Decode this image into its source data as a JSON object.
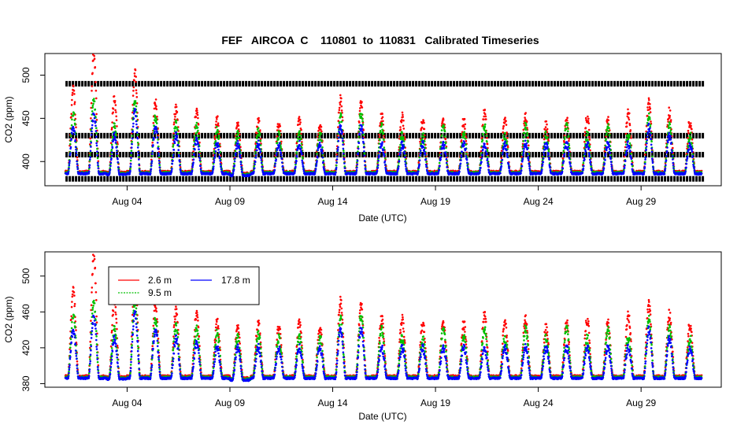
{
  "title": "FEF   AIRCOA  C    110801  to  110831   Calibrated Timeseries",
  "colors": {
    "s1": "#ff0000",
    "s2": "#00c000",
    "s3": "#0000ff",
    "calib": "#000000"
  },
  "chart_data": [
    {
      "type": "scatter",
      "panel": "top",
      "xlabel": "Date (UTC)",
      "ylabel": "CO2 (ppm)",
      "x_unit": "days since Aug 01 00:00 UTC",
      "xlim": [
        -1.0,
        31.9
      ],
      "ylim": [
        372,
        525
      ],
      "xticks": [
        {
          "x": 3,
          "label": "Aug 04"
        },
        {
          "x": 8,
          "label": "Aug 09"
        },
        {
          "x": 13,
          "label": "Aug 14"
        },
        {
          "x": 18,
          "label": "Aug 19"
        },
        {
          "x": 23,
          "label": "Aug 24"
        },
        {
          "x": 28,
          "label": "Aug 29"
        }
      ],
      "yticks": [
        400,
        450,
        500
      ],
      "calibration_levels": [
        380,
        408,
        430,
        490
      ],
      "calibration_range": [
        0.0,
        31.1
      ],
      "grid": false
    },
    {
      "type": "scatter",
      "panel": "bottom",
      "xlabel": "Date (UTC)",
      "ylabel": "CO2 (ppm)",
      "xlim": [
        -1.0,
        31.9
      ],
      "ylim": [
        376,
        527
      ],
      "xticks": [
        {
          "x": 3,
          "label": "Aug 04"
        },
        {
          "x": 8,
          "label": "Aug 09"
        },
        {
          "x": 13,
          "label": "Aug 14"
        },
        {
          "x": 18,
          "label": "Aug 19"
        },
        {
          "x": 23,
          "label": "Aug 24"
        },
        {
          "x": 28,
          "label": "Aug 29"
        }
      ],
      "yticks": [
        380,
        420,
        460,
        500
      ],
      "legend": {
        "placement": "top-left",
        "entries": [
          "2.6 m",
          "9.5 m",
          "17.8 m"
        ]
      },
      "series": [
        {
          "name": "2.6 m",
          "color": "#ff0000"
        },
        {
          "name": "9.5 m",
          "color": "#00c000"
        },
        {
          "name": "17.8 m",
          "color": "#0000ff"
        }
      ],
      "daily_cycle": {
        "day_offset": [
          0,
          1,
          2,
          3,
          4,
          5,
          6,
          7,
          8,
          9,
          10,
          11,
          12,
          13,
          14,
          15,
          16,
          17,
          18,
          19,
          20,
          21,
          22,
          23,
          24,
          25,
          26,
          27,
          28,
          29,
          30,
          31
        ],
        "baseline_ppm": [
          386,
          386,
          385,
          386,
          386,
          386,
          386,
          386,
          384,
          386,
          386,
          386,
          386,
          386,
          386,
          386,
          386,
          386,
          386,
          386,
          386,
          386,
          386,
          386,
          386,
          386,
          386,
          386,
          386,
          386,
          386,
          386
        ],
        "peak_17_8m": [
          440,
          455,
          430,
          460,
          440,
          430,
          425,
          420,
          420,
          420,
          420,
          420,
          420,
          440,
          440,
          420,
          420,
          420,
          420,
          420,
          420,
          420,
          420,
          420,
          420,
          420,
          420,
          420,
          440,
          430,
          420,
          420
        ],
        "peak_9_5m": [
          455,
          470,
          440,
          470,
          450,
          445,
          440,
          435,
          430,
          435,
          430,
          430,
          430,
          450,
          455,
          440,
          430,
          430,
          440,
          430,
          440,
          430,
          440,
          430,
          440,
          430,
          440,
          430,
          450,
          440,
          430,
          430
        ],
        "peak_2_6m": [
          480,
          520,
          470,
          500,
          465,
          460,
          455,
          445,
          440,
          445,
          440,
          445,
          440,
          470,
          465,
          450,
          450,
          445,
          445,
          445,
          455,
          445,
          450,
          440,
          445,
          450,
          445,
          455,
          465,
          455,
          445,
          440
        ]
      }
    }
  ]
}
